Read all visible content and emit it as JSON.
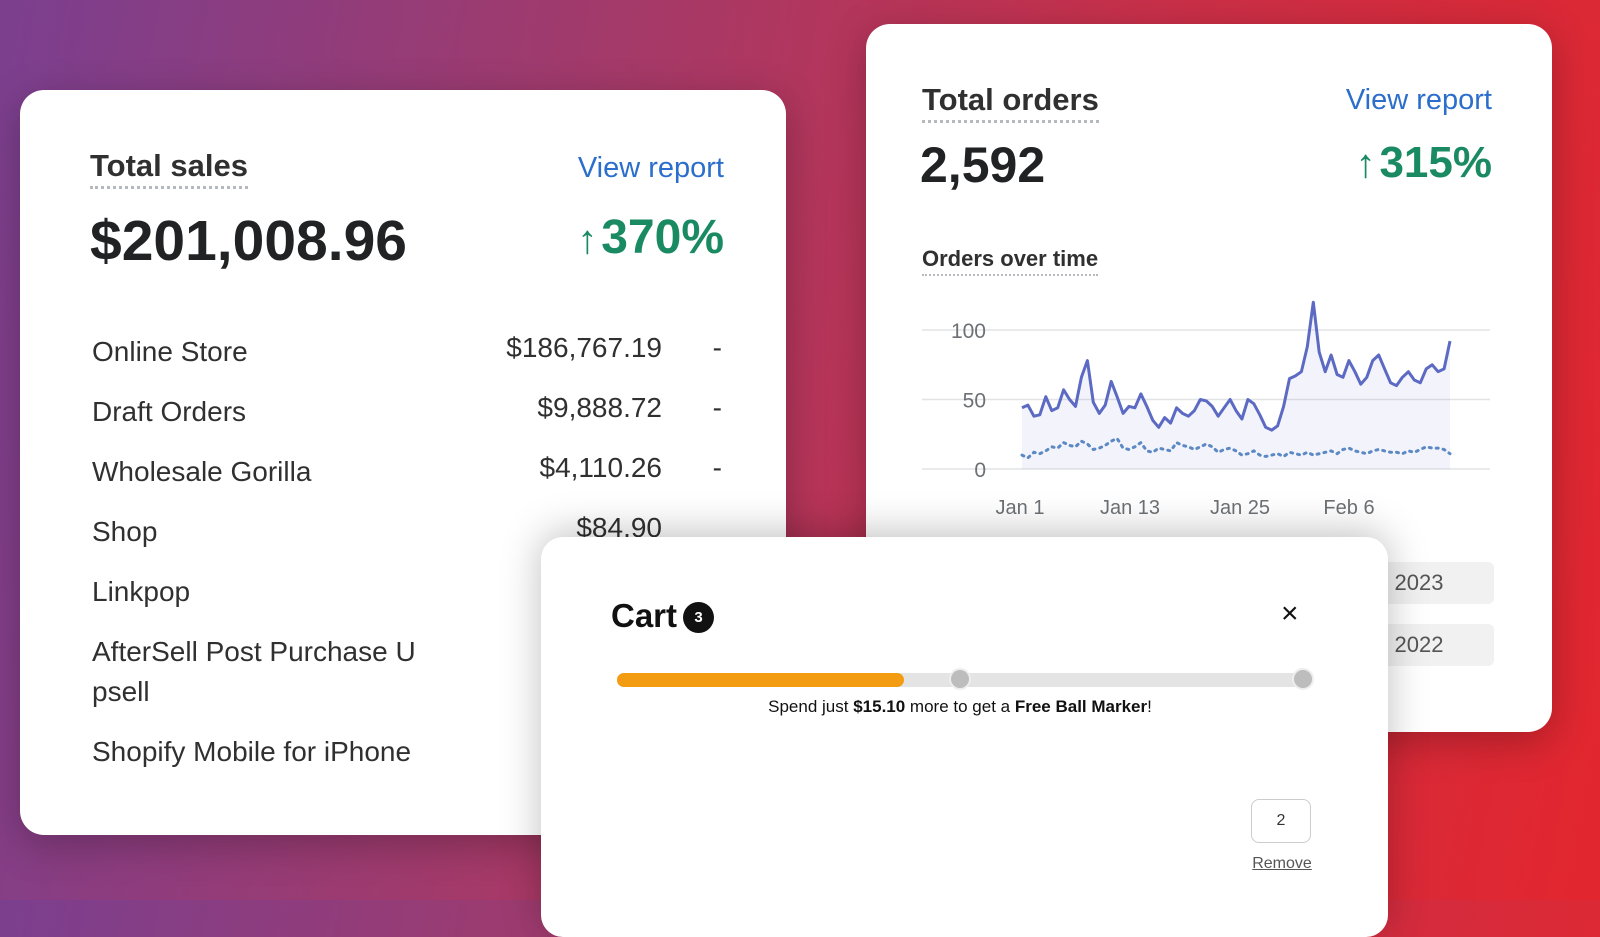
{
  "sales_card": {
    "title": "Total sales",
    "view_report": "View report",
    "total": "$201,008.96",
    "change_arrow": "↑",
    "change": "370%",
    "rows": [
      {
        "label": "Online Store",
        "amount": "$186,767.19",
        "dash": "-"
      },
      {
        "label": "Draft Orders",
        "amount": "$9,888.72",
        "dash": "-"
      },
      {
        "label": "Wholesale Gorilla",
        "amount": "$4,110.26",
        "dash": "-"
      },
      {
        "label": "Shop",
        "amount": "$84.90",
        "dash": ""
      },
      {
        "label": "Linkpop",
        "amount": "",
        "dash": ""
      },
      {
        "label": "AfterSell Post Purchase U psell",
        "amount": "",
        "dash": ""
      },
      {
        "label": "Shopify Mobile for iPhone",
        "amount": "",
        "dash": ""
      }
    ]
  },
  "orders_card": {
    "title": "Total orders",
    "view_report": "View report",
    "total": "2,592",
    "change_arrow": "↑",
    "change": "315%",
    "chart_title": "Orders over time",
    "year_pills": [
      "2023",
      "2022"
    ]
  },
  "chart_data": {
    "type": "line",
    "title": "Orders over time",
    "x_ticks": [
      "Jan 1",
      "Jan 13",
      "Jan 25",
      "Feb 6"
    ],
    "y_ticks": [
      0,
      50,
      100
    ],
    "ylim": [
      0,
      110
    ],
    "grid": true,
    "series": [
      {
        "style": "solid",
        "color": "#5c6ac4",
        "values": [
          44,
          46,
          38,
          39,
          52,
          42,
          44,
          57,
          50,
          45,
          66,
          78,
          48,
          40,
          46,
          63,
          52,
          40,
          45,
          44,
          54,
          45,
          35,
          30,
          37,
          33,
          44,
          40,
          38,
          42,
          50,
          49,
          45,
          38,
          44,
          50,
          42,
          36,
          50,
          47,
          39,
          30,
          28,
          31,
          45,
          65,
          67,
          70,
          88,
          120,
          84,
          70,
          82,
          68,
          66,
          78,
          70,
          61,
          66,
          78,
          82,
          72,
          62,
          60,
          66,
          70,
          64,
          62,
          72,
          75,
          70,
          72,
          92
        ]
      },
      {
        "style": "dotted",
        "color": "#5c89c4",
        "values": [
          10,
          8,
          12,
          11,
          13,
          16,
          15,
          19,
          17,
          16,
          20,
          18,
          14,
          15,
          17,
          20,
          22,
          15,
          14,
          16,
          19,
          13,
          12,
          15,
          14,
          13,
          19,
          17,
          16,
          14,
          16,
          18,
          16,
          12,
          14,
          15,
          13,
          10,
          11,
          13,
          10,
          9,
          10,
          11,
          9,
          12,
          11,
          10,
          12,
          10,
          11,
          12,
          13,
          11,
          14,
          15,
          13,
          12,
          11,
          13,
          14,
          13,
          12,
          12,
          11,
          13,
          12,
          14,
          16,
          15,
          15,
          14,
          11
        ]
      }
    ]
  },
  "cart": {
    "title": "Cart",
    "count": "3",
    "close_icon": "×",
    "progress_fraction": 0.418,
    "milestones": [
      0.5,
      1.0
    ],
    "promo_prefix": "Spend just ",
    "promo_amount": "$15.10",
    "promo_middle": " more to get a ",
    "promo_reward": "Free Ball Marker",
    "promo_suffix": "!",
    "quantity": "2",
    "remove_label": "Remove"
  }
}
